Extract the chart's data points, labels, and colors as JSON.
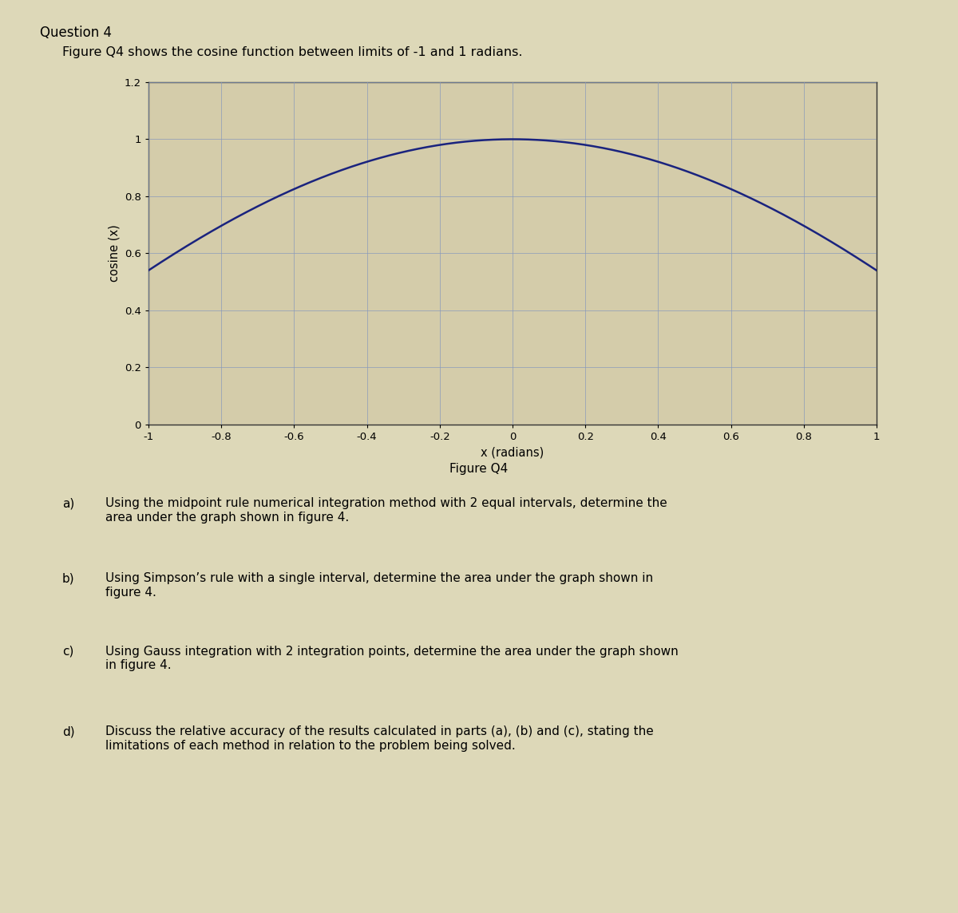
{
  "title": "Question 4",
  "subtitle": "Figure Q4 shows the cosine function between limits of -1 and 1 radians.",
  "fig_caption": "Figure Q4",
  "xlabel": "x (radians)",
  "ylabel": "cosine (x)",
  "xlim": [
    -1,
    1
  ],
  "ylim": [
    0,
    1.2
  ],
  "xticks": [
    -1,
    -0.8,
    -0.6,
    -0.4,
    -0.2,
    0,
    0.2,
    0.4,
    0.6,
    0.8,
    1
  ],
  "yticks": [
    0,
    0.2,
    0.4,
    0.6,
    0.8,
    1,
    1.2
  ],
  "line_color": "#1a237e",
  "bg_color": "#ddd8b8",
  "plot_bg_color": "#d4ccaa",
  "grid_color": "#8899bb",
  "grid_alpha": 0.7,
  "spine_color": "#333333",
  "q_indent_label": 0.075,
  "q_indent_text": 0.115,
  "questions_label": [
    "a)",
    "b)",
    "c)",
    "d)"
  ],
  "questions_text": [
    "Using the midpoint rule numerical integration method with 2 equal intervals, determine the\narea under the graph shown in figure 4.",
    "Using Simpson’s rule with a single interval, determine the area under the graph shown in\nfigure 4.",
    "Using Gauss integration with 2 integration points, determine the area under the graph shown\nin figure 4.",
    "Discuss the relative accuracy of the results calculated in parts (a), (b) and (c), stating the\nlimitations of each method in relation to the problem being solved."
  ]
}
